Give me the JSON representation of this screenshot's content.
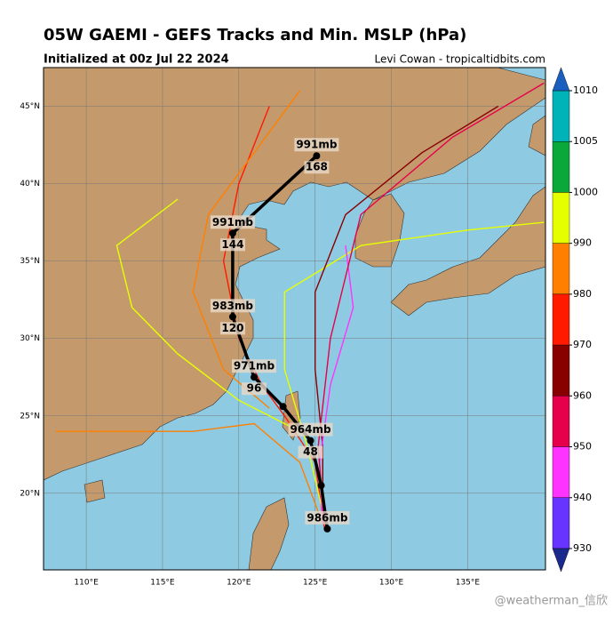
{
  "chart_data": {
    "type": "track-map",
    "title": "05W GAEMI - GEFS Tracks and Min. MSLP (hPa)",
    "subtitle": "Initialized at 00z Jul 22 2024",
    "credit": "Levi Cowan - tropicaltidbits.com",
    "watermark": "@weatherman_信欣",
    "xlim": [
      107.2,
      140.1
    ],
    "ylim": [
      15.05,
      47.5
    ],
    "xticks": [
      {
        "value": 110,
        "label": "110°E"
      },
      {
        "value": 115,
        "label": "115°E"
      },
      {
        "value": 120,
        "label": "120°E"
      },
      {
        "value": 125,
        "label": "125°E"
      },
      {
        "value": 130,
        "label": "130°E"
      },
      {
        "value": 135,
        "label": "135°E"
      }
    ],
    "yticks": [
      {
        "value": 20,
        "label": "20°N"
      },
      {
        "value": 25,
        "label": "25°N"
      },
      {
        "value": 30,
        "label": "30°N"
      },
      {
        "value": 35,
        "label": "35°N"
      },
      {
        "value": 40,
        "label": "40°N"
      },
      {
        "value": 45,
        "label": "45°N"
      }
    ],
    "colorbar": {
      "ticks": [
        1010,
        1005,
        1000,
        990,
        980,
        970,
        960,
        950,
        940,
        930
      ],
      "colors": [
        "#00b3b8",
        "#0aa83a",
        "#e6ff00",
        "#ff7f00",
        "#ff1a00",
        "#880000",
        "#e6004c",
        "#ff33ff",
        "#6633ff"
      ],
      "end_colors": [
        "#1a5fbf",
        "#1a2a8c"
      ]
    },
    "members": [
      {
        "color": "#ff1a00",
        "lon": [
          125.6,
          125.0,
          123.0,
          121.5,
          120.0,
          119.0,
          120.0,
          122.0
        ],
        "lat": [
          17.8,
          22.0,
          25.0,
          27.0,
          30.0,
          35.0,
          40.0,
          45.0
        ]
      },
      {
        "color": "#ff7f00",
        "lon": [
          125.5,
          124.0,
          121.0,
          117.0,
          112.0,
          108.0
        ],
        "lat": [
          18.0,
          22.0,
          24.5,
          24.0,
          24.0,
          24.0
        ]
      },
      {
        "color": "#e6ff00",
        "lon": [
          125.7,
          124.5,
          123.0,
          123.0,
          128.0,
          135.0,
          140.0
        ],
        "lat": [
          18.0,
          23.0,
          28.0,
          33.0,
          36.0,
          37.0,
          37.5
        ]
      },
      {
        "color": "#880000",
        "lon": [
          125.5,
          125.5,
          125.0,
          125.0,
          127.0,
          132.0,
          137.0
        ],
        "lat": [
          18.0,
          23.0,
          28.0,
          33.0,
          38.0,
          42.0,
          45.0
        ]
      },
      {
        "color": "#ff33ff",
        "lon": [
          125.5,
          125.3,
          126.0,
          127.5,
          127.0
        ],
        "lat": [
          18.0,
          22.0,
          27.0,
          32.0,
          36.0
        ]
      },
      {
        "color": "#e6004c",
        "lon": [
          125.6,
          125.2,
          126.0,
          128.0,
          134.0,
          140.0
        ],
        "lat": [
          18.0,
          23.0,
          30.0,
          38.0,
          43.0,
          46.5
        ]
      },
      {
        "color": "#e6ff00",
        "lon": [
          124.0,
          120.0,
          116.0,
          113.0,
          112.0,
          116.0
        ],
        "lat": [
          24.0,
          26.0,
          29.0,
          32.0,
          36.0,
          39.0
        ]
      },
      {
        "color": "#ff7f00",
        "lon": [
          122.0,
          119.0,
          117.0,
          118.0,
          121.0,
          124.0
        ],
        "lat": [
          25.5,
          28.0,
          33.0,
          38.0,
          42.0,
          46.0
        ]
      }
    ],
    "mean_track": {
      "color": "#000000",
      "lon": [
        125.8,
        125.4,
        124.7,
        122.9,
        121.0,
        119.6,
        119.6,
        125.1
      ],
      "lat": [
        17.7,
        20.5,
        23.4,
        25.6,
        27.5,
        31.4,
        36.8,
        41.8
      ],
      "hour_labels": [
        null,
        null,
        "48",
        null,
        "96",
        "120",
        "144",
        "168"
      ],
      "mslp_labels": [
        "986mb",
        null,
        "964mb",
        null,
        "971mb",
        "983mb",
        "991mb",
        "991mb"
      ]
    }
  }
}
